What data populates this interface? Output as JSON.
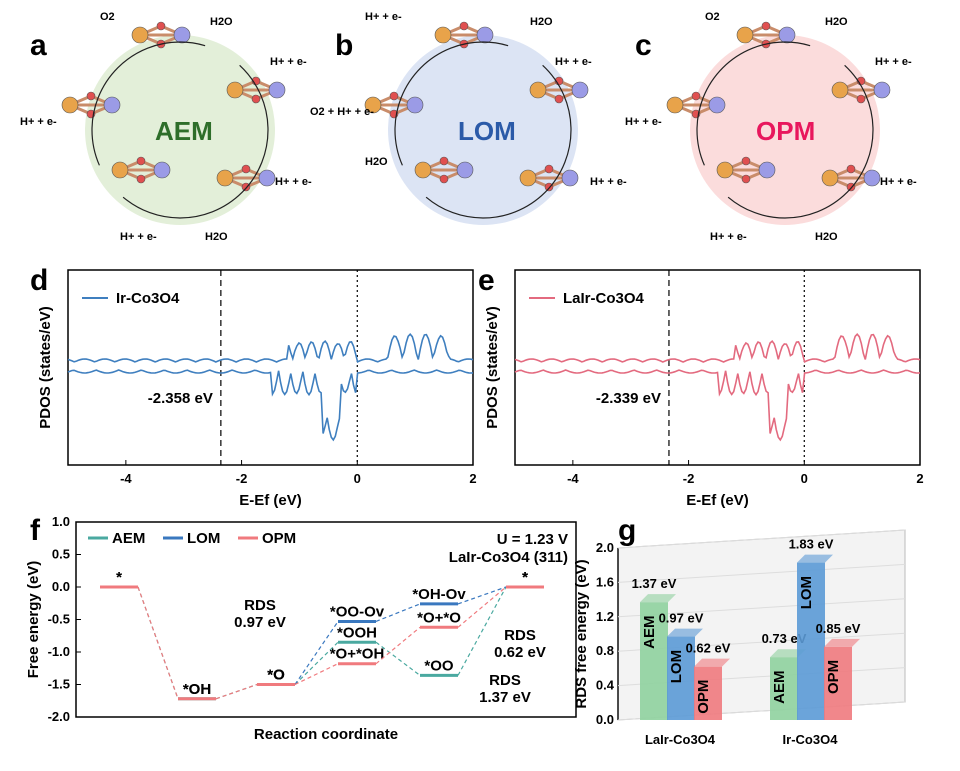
{
  "panel_labels": {
    "a": "a",
    "b": "b",
    "c": "c",
    "d": "d",
    "e": "e",
    "f": "f",
    "g": "g"
  },
  "mechanisms": {
    "a": {
      "name": "AEM",
      "color": "#2e6e2a",
      "bg": "#e3efd9",
      "labels": [
        "O2",
        "H2O",
        "H+ + e-",
        "H+ + e-",
        "H2O",
        "H+ + e-",
        "H+ + e-"
      ]
    },
    "b": {
      "name": "LOM",
      "color": "#2b5aa8",
      "bg": "#dce4f4",
      "labels": [
        "H+ + e-",
        "H2O",
        "H+ + e-",
        "O2 + H+ + e-",
        "H+ + e-",
        "H2O"
      ]
    },
    "c": {
      "name": "OPM",
      "color": "#e8175d",
      "bg": "#fbdcdc",
      "labels": [
        "O2",
        "H2O",
        "H+ + e-",
        "H+ + e-",
        "H+ + e-",
        "H+ + e-",
        "H2O"
      ]
    }
  },
  "pdos_d": {
    "legend": "Ir-Co3O4",
    "color": "#3f7fbf",
    "dband_label": "-2.358 eV",
    "xlabel": "E-Ef (eV)",
    "ylabel": "PDOS (states/eV)",
    "xticks": [
      "-4",
      "-2",
      "0",
      "2"
    ],
    "dband_center": -2.358
  },
  "pdos_e": {
    "legend": "LaIr-Co3O4",
    "color": "#e36a7f",
    "dband_label": "-2.339 eV",
    "xlabel": "E-Ef (eV)",
    "ylabel": "PDOS (states/eV)",
    "xticks": [
      "-4",
      "-2",
      "0",
      "2"
    ],
    "dband_center": -2.339
  },
  "chart_data": [
    {
      "type": "line",
      "panel": "f",
      "xlabel": "Reaction coordinate",
      "ylabel": "Free energy (eV)",
      "ylim": [
        -2.0,
        1.0
      ],
      "yticks": [
        "1.0",
        "0.5",
        "0.0",
        "-0.5",
        "-1.0",
        "-1.5",
        "-2.0"
      ],
      "annotation": [
        "U = 1.23 V",
        "LaIr-Co3O4 (311)"
      ],
      "series": [
        {
          "name": "AEM",
          "color": "#4aa9a0",
          "levels": [
            {
              "label": "*",
              "y": 0.0
            },
            {
              "label": "*OH",
              "y": -1.72
            },
            {
              "label": "*O",
              "y": -1.5
            },
            {
              "label": "*OOH",
              "y": -0.85
            },
            {
              "label": "*OO",
              "y": -1.36
            },
            {
              "label": "*",
              "y": 0.0
            }
          ]
        },
        {
          "name": "LOM",
          "color": "#3a78bf",
          "levels": [
            {
              "label": "*O",
              "y": -1.5
            },
            {
              "label": "*OO-Ov",
              "y": -0.53
            },
            {
              "label": "*OH-Ov",
              "y": -0.26
            },
            {
              "label": "*",
              "y": 0.0
            }
          ]
        },
        {
          "name": "OPM",
          "color": "#f07a7e",
          "levels": [
            {
              "label": "*",
              "y": 0.0
            },
            {
              "label": "*OH",
              "y": -1.72
            },
            {
              "label": "*O",
              "y": -1.5
            },
            {
              "label": "*O+*OH",
              "y": -1.18
            },
            {
              "label": "*O+*O",
              "y": -0.62
            },
            {
              "label": "*",
              "y": 0.0
            }
          ]
        }
      ],
      "rds_annotations": [
        {
          "text": "RDS",
          "value": "0.97 eV",
          "color": "#3a78bf"
        },
        {
          "text": "RDS",
          "value": "0.62 eV",
          "color": "#f07a7e"
        },
        {
          "text": "RDS",
          "value": "1.37 eV",
          "color": "#4aa9a0"
        }
      ]
    },
    {
      "type": "bar",
      "panel": "g",
      "ylabel": "RDS free energy (eV)",
      "ylim": [
        0.0,
        2.0
      ],
      "yticks": [
        "0.0",
        "0.4",
        "0.8",
        "1.2",
        "1.6",
        "2.0"
      ],
      "categories": [
        "LaIr-Co3O4",
        "Ir-Co3O4"
      ],
      "series": [
        {
          "name": "AEM",
          "color": "#8fd19e",
          "values": [
            1.37,
            0.73
          ],
          "labels": [
            "1.37 eV",
            "0.73 eV"
          ],
          "label_color": "#4aa9a0"
        },
        {
          "name": "LOM",
          "color": "#5b9ad6",
          "values": [
            0.97,
            1.83
          ],
          "labels": [
            "0.97 eV",
            "1.83 eV"
          ],
          "label_color": "#3a78bf"
        },
        {
          "name": "OPM",
          "color": "#f07a7e",
          "values": [
            0.62,
            0.85
          ],
          "labels": [
            "0.62 eV",
            "0.85 eV"
          ],
          "label_color": "#e85a66"
        }
      ]
    }
  ]
}
